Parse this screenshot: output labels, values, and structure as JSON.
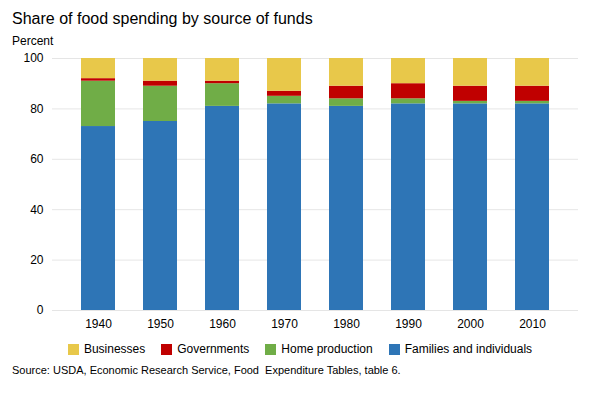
{
  "chart_data": {
    "type": "bar",
    "stacked": true,
    "title": "Share of food spending by source of funds",
    "y_label": "Percent",
    "caption": "Source: USDA, Economic Research Service, Food  Expenditure Tables, table 6.",
    "categories": [
      "1940",
      "1950",
      "1960",
      "1970",
      "1980",
      "1990",
      "2000",
      "2010"
    ],
    "series": [
      {
        "name": "Families and individuals",
        "color": "#2E75B6",
        "values": [
          73,
          75,
          81,
          82,
          81,
          82,
          82,
          82
        ]
      },
      {
        "name": "Home production",
        "color": "#70AD47",
        "values": [
          18,
          14,
          9,
          3,
          3,
          2,
          1,
          1
        ]
      },
      {
        "name": "Governments",
        "color": "#C00000",
        "values": [
          1,
          2,
          1,
          2,
          5,
          6,
          6,
          6
        ]
      },
      {
        "name": "Businesses",
        "color": "#E8C84A",
        "values": [
          8,
          9,
          9,
          13,
          11,
          10,
          11,
          11
        ]
      }
    ],
    "ylim": [
      0,
      100
    ],
    "yticks": [
      0,
      20,
      40,
      60,
      80,
      100
    ],
    "grid": true,
    "legend": "bottom"
  }
}
